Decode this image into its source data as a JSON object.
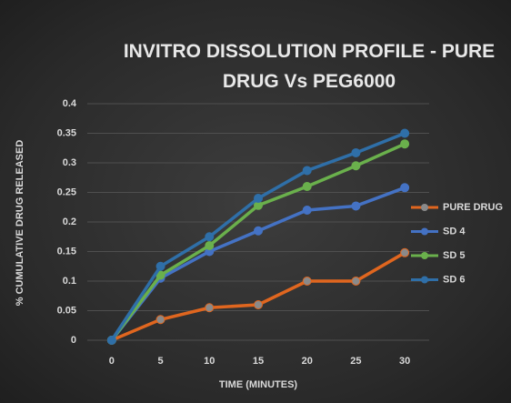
{
  "chart_data": {
    "type": "line",
    "title": "INVITRO DISSOLUTION PROFILE - PURE DRUG Vs PEG6000",
    "x_label": "TIME (MINUTES)",
    "y_label": "% CUMULATIVE DRUG RELEASED",
    "categories": [
      "0",
      "5",
      "10",
      "15",
      "20",
      "25",
      "30"
    ],
    "series": [
      {
        "name": "PURE DRUG",
        "color": "#e0661f",
        "marker_color": "#8a8a8a",
        "values": [
          0,
          0.035,
          0.055,
          0.06,
          0.1,
          0.1,
          0.148
        ]
      },
      {
        "name": "SD 4",
        "color": "#4472c4",
        "marker_color": "#4472c4",
        "values": [
          0,
          0.105,
          0.15,
          0.185,
          0.22,
          0.227,
          0.258
        ]
      },
      {
        "name": "SD 5",
        "color": "#6ab04c",
        "marker_color": "#6ab04c",
        "values": [
          0,
          0.11,
          0.16,
          0.228,
          0.26,
          0.295,
          0.332
        ]
      },
      {
        "name": "SD 6",
        "color": "#2f6fa8",
        "marker_color": "#2f6fa8",
        "values": [
          0,
          0.125,
          0.175,
          0.24,
          0.287,
          0.317,
          0.35
        ]
      }
    ],
    "ylim": [
      0,
      0.4
    ],
    "yticks": [
      0,
      0.05,
      0.1,
      0.15,
      0.2,
      0.25,
      0.3,
      0.35,
      0.4
    ],
    "grid": true,
    "legend": "right"
  }
}
